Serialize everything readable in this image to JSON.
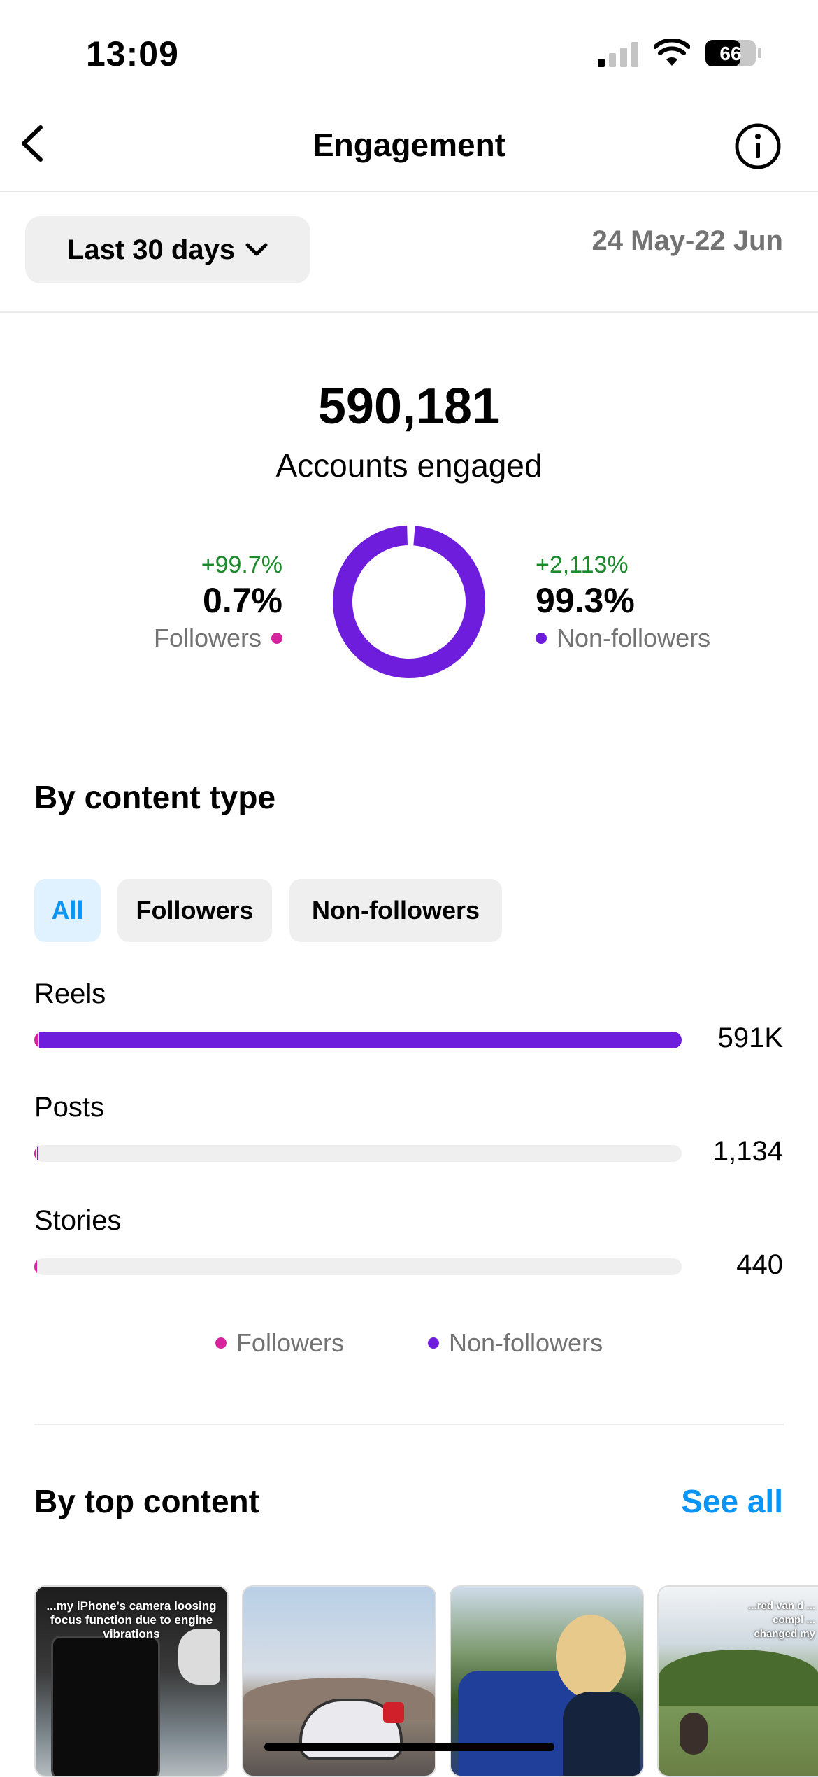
{
  "status_bar": {
    "time": "13:09",
    "battery": "66"
  },
  "header": {
    "title": "Engagement"
  },
  "range": {
    "label": "Last 30 days",
    "dates": "24 May-22 Jun"
  },
  "summary": {
    "total": "590,181",
    "caption": "Accounts engaged",
    "followers": {
      "change": "+99.7%",
      "percent": "0.7%",
      "label": "Followers",
      "share": 0.007
    },
    "non_followers": {
      "change": "+2,113%",
      "percent": "99.3%",
      "label": "Non-followers",
      "share": 0.993
    }
  },
  "colors": {
    "followers": "#d6249f",
    "non_followers": "#6f1ddc",
    "accent": "#0a95f6",
    "positive": "#1a8a2a"
  },
  "content_type": {
    "title": "By content type",
    "tabs": [
      "All",
      "Followers",
      "Non-followers"
    ],
    "active_tab": "All",
    "rows": [
      {
        "label": "Reels",
        "value": "591K",
        "followers_share": 0.007,
        "non_followers_share": 0.993,
        "fraction_of_max": 1.0
      },
      {
        "label": "Posts",
        "value": "1,134",
        "followers_share": 0.5,
        "non_followers_share": 0.5,
        "fraction_of_max": 0.006
      },
      {
        "label": "Stories",
        "value": "440",
        "followers_share": 1.0,
        "non_followers_share": 0.0,
        "fraction_of_max": 0.003
      }
    ],
    "legend": [
      "Followers",
      "Non-followers"
    ]
  },
  "top_content": {
    "title": "By top content",
    "see_all": "See all",
    "thumbs": [
      {
        "name": "thumb-reel-camera",
        "caption": "...my iPhone's camera loosing focus function due to engine vibrations"
      },
      {
        "name": "thumb-reel-motorcycle",
        "caption": ""
      },
      {
        "name": "thumb-reel-police",
        "caption": ""
      },
      {
        "name": "thumb-reel-outdoor",
        "caption": "...red van d ... compl ... changed my"
      }
    ]
  }
}
